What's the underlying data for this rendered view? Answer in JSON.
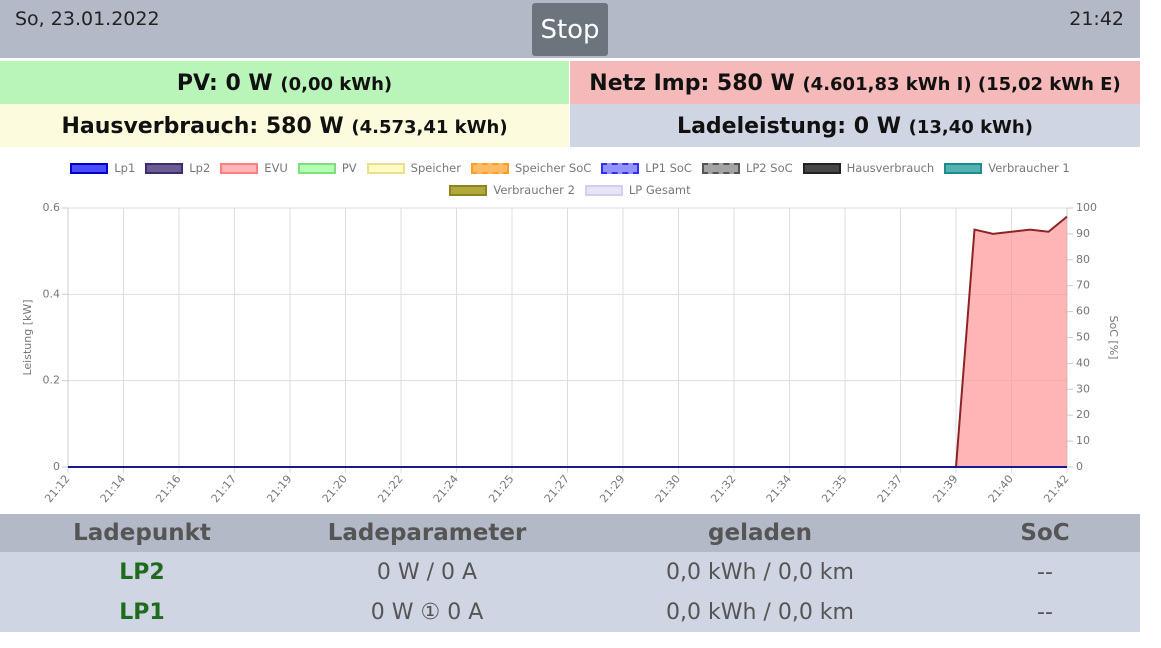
{
  "header": {
    "date": "So, 23.01.2022",
    "button": "Stop",
    "time": "21:42"
  },
  "summary": {
    "pv": {
      "main": "PV: 0 W",
      "detail": "(0,00 kWh)"
    },
    "grid": {
      "main": "Netz Imp: 580 W",
      "detail": "(4.601,83 kWh I) (15,02 kWh E)"
    },
    "house": {
      "main": "Hausverbrauch: 580 W",
      "detail": "(4.573,41 kWh)"
    },
    "charging": {
      "main": "Ladeleistung: 0 W",
      "detail": "(13,40 kWh)"
    }
  },
  "chart_data": {
    "type": "area",
    "y_label": "Leistung [kW]",
    "y2_label": "SoC [%]",
    "ylim": [
      0,
      0.6
    ],
    "yticks": [
      0,
      0.2,
      0.4,
      0.6
    ],
    "y2lim": [
      0,
      100
    ],
    "y2ticks": [
      0,
      10,
      20,
      30,
      40,
      50,
      60,
      70,
      80,
      90,
      100
    ],
    "grid": true,
    "categories": [
      "21:12",
      null,
      null,
      "21:14",
      null,
      null,
      "21:16",
      null,
      null,
      "21:17",
      null,
      null,
      "21:19",
      null,
      null,
      "21:20",
      null,
      null,
      "21:22",
      null,
      null,
      "21:24",
      null,
      null,
      "21:25",
      null,
      null,
      "21:27",
      null,
      null,
      "21:29",
      null,
      null,
      "21:30",
      null,
      null,
      "21:32",
      null,
      null,
      "21:34",
      null,
      null,
      "21:35",
      null,
      null,
      "21:37",
      null,
      null,
      "21:39",
      null,
      null,
      "21:40",
      null,
      null,
      "21:42"
    ],
    "series": [
      {
        "name": "Lp1",
        "color": "rgba(0,0,255,0.7)",
        "border": "#0000c8",
        "dashed": false,
        "line_color": "#1a1a8c",
        "values": [
          0,
          0,
          0,
          0,
          0,
          0,
          0,
          0,
          0,
          0,
          0,
          0,
          0,
          0,
          0,
          0,
          0,
          0,
          0,
          0,
          0,
          0,
          0,
          0,
          0,
          0,
          0,
          0,
          0,
          0,
          0,
          0,
          0,
          0,
          0,
          0,
          0,
          0,
          0,
          0,
          0,
          0,
          0,
          0,
          0,
          0,
          0,
          0,
          0,
          0,
          0,
          0,
          0,
          0,
          0
        ]
      },
      {
        "name": "Lp2",
        "color": "rgba(70,50,120,0.8)",
        "border": "#3c2d6e",
        "dashed": false
      },
      {
        "name": "EVU",
        "color": "rgba(255,150,150,0.7)",
        "border": "#ff8080",
        "dashed": false,
        "line_color": "#8b2525",
        "values": [
          0,
          0,
          0,
          0,
          0,
          0,
          0,
          0,
          0,
          0,
          0,
          0,
          0,
          0,
          0,
          0,
          0,
          0,
          0,
          0,
          0,
          0,
          0,
          0,
          0,
          0,
          0,
          0,
          0,
          0,
          0,
          0,
          0,
          0,
          0,
          0,
          0,
          0,
          0,
          0,
          0,
          0,
          0,
          0,
          0,
          0,
          0,
          0,
          0,
          0.55,
          0.54,
          0.545,
          0.55,
          0.545,
          0.58
        ]
      },
      {
        "name": "PV",
        "color": "rgba(150,255,150,0.7)",
        "border": "#7fdf7f",
        "dashed": false
      },
      {
        "name": "Speicher",
        "color": "rgba(255,250,180,0.8)",
        "border": "#e8e090",
        "dashed": false
      },
      {
        "name": "Speicher SoC",
        "color": "rgba(255,170,60,0.8)",
        "border": "#ff9c2a",
        "dashed": true
      },
      {
        "name": "LP1 SoC",
        "color": "rgba(120,120,255,0.8)",
        "border": "#3030ff",
        "dashed": true
      },
      {
        "name": "LP2 SoC",
        "color": "rgba(140,140,140,0.8)",
        "border": "#555555",
        "dashed": true
      },
      {
        "name": "Hausverbrauch",
        "color": "rgba(50,50,50,0.9)",
        "border": "#222222",
        "dashed": false
      },
      {
        "name": "Verbraucher 1",
        "color": "rgba(40,160,160,0.8)",
        "border": "#1e8c8c",
        "dashed": false
      },
      {
        "name": "Verbraucher 2",
        "color": "rgba(170,160,40,0.9)",
        "border": "#8c8420",
        "dashed": false
      },
      {
        "name": "LP Gesamt",
        "color": "rgba(225,225,245,0.9)",
        "border": "#d0d0ec",
        "dashed": false
      }
    ]
  },
  "table": {
    "headers": [
      "Ladepunkt",
      "Ladeparameter",
      "geladen",
      "SoC"
    ],
    "rows": [
      [
        "LP2",
        "0 W / 0 A",
        "0,0 kWh / 0,0 km",
        "--"
      ],
      [
        "LP1",
        "0 W ① 0 A",
        "0,0 kWh / 0,0 km",
        "--"
      ]
    ]
  }
}
